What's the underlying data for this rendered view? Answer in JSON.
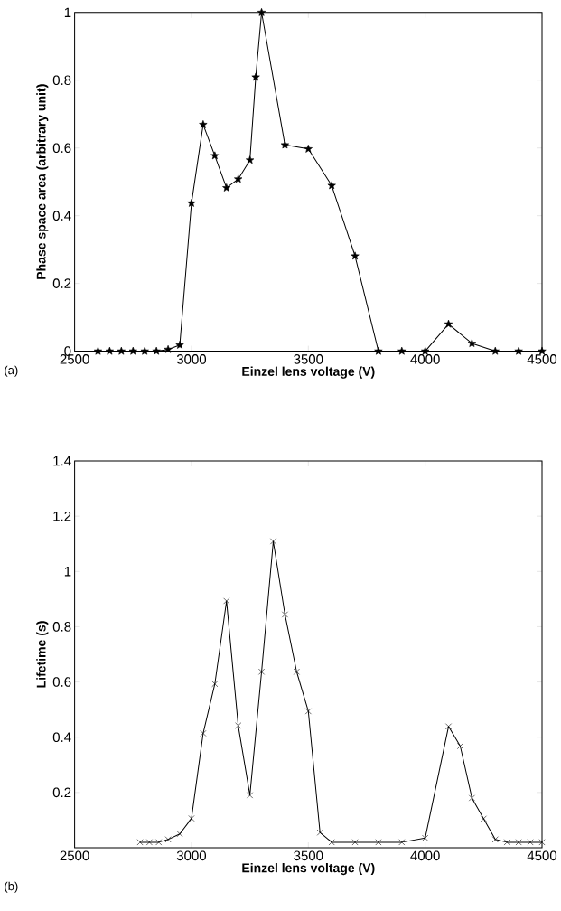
{
  "chart_data": [
    {
      "type": "line",
      "xlabel": "Einzel lens voltage (V)",
      "ylabel": "Phase space area (arbitrary unit)",
      "annotations": [
        "(a)"
      ],
      "marker": "star",
      "line_style": "solid",
      "color": "#000000",
      "x": [
        2600,
        2650,
        2700,
        2750,
        2800,
        2850,
        2900,
        2950,
        3000,
        3050,
        3100,
        3150,
        3200,
        3250,
        3275,
        3300,
        3400,
        3500,
        3600,
        3700,
        3800,
        3900,
        4000,
        4100,
        4200,
        4300,
        4400,
        4500
      ],
      "values": [
        0,
        0,
        0,
        0,
        0,
        0,
        0.005,
        0.018,
        0.437,
        0.669,
        0.577,
        0.482,
        0.508,
        0.564,
        0.809,
        1.0,
        0.609,
        0.597,
        0.489,
        0.281,
        0,
        0,
        0,
        0.08,
        0.023,
        0,
        0,
        0
      ],
      "xlim": [
        2500,
        4500
      ],
      "ylim": [
        0,
        1
      ],
      "xticks": [
        2500,
        3000,
        3500,
        4000,
        4500
      ],
      "yticks": [
        0,
        0.2,
        0.4,
        0.6,
        0.8,
        1
      ]
    },
    {
      "type": "line",
      "xlabel": "Einzel lens voltage (V)",
      "ylabel": "Lifetime (s)",
      "annotations": [
        "(b)"
      ],
      "marker": "cross",
      "line_style": "solid",
      "color": "#000000",
      "x": [
        2780,
        2820,
        2860,
        2900,
        2950,
        3000,
        3050,
        3100,
        3150,
        3200,
        3250,
        3300,
        3350,
        3400,
        3450,
        3500,
        3550,
        3600,
        3700,
        3800,
        3900,
        4000,
        4100,
        4150,
        4200,
        4250,
        4300,
        4350,
        4400,
        4450,
        4500
      ],
      "values": [
        0.02,
        0.02,
        0.02,
        0.03,
        0.05,
        0.106,
        0.414,
        0.593,
        0.893,
        0.442,
        0.19,
        0.637,
        1.109,
        0.844,
        0.637,
        0.494,
        0.055,
        0.02,
        0.02,
        0.02,
        0.02,
        0.035,
        0.439,
        0.368,
        0.18,
        0.105,
        0.03,
        0.02,
        0.02,
        0.02,
        0.02
      ],
      "xlim": [
        2500,
        4500
      ],
      "ylim": [
        0,
        1.4
      ],
      "xticks": [
        2500,
        3000,
        3500,
        4000,
        4500
      ],
      "yticks": [
        0.2,
        0.4,
        0.6,
        0.8,
        1,
        1.2,
        1.4
      ]
    }
  ]
}
